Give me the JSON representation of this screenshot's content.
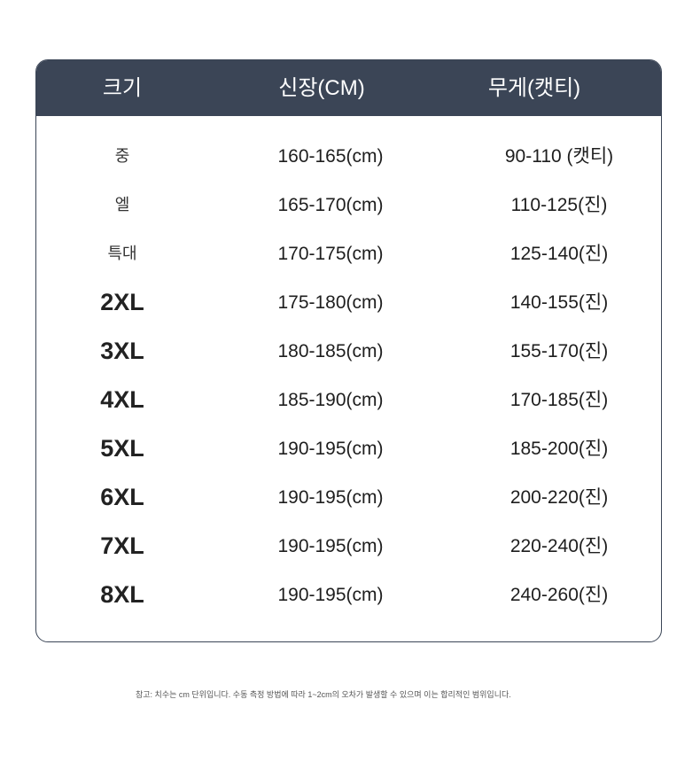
{
  "header": {
    "size": "크기",
    "height": "신장(CM)",
    "weight": "무게(캣티)"
  },
  "header_color": "#3b4556",
  "rows": [
    {
      "size": "중",
      "height": "160-165(cm)",
      "weight": "90-110 (캣티)"
    },
    {
      "size": "엘",
      "height": "165-170(cm)",
      "weight": "110-125(진)"
    },
    {
      "size": "특대",
      "height": "170-175(cm)",
      "weight": "125-140(진)"
    },
    {
      "size": "2XL",
      "height": "175-180(cm)",
      "weight": "140-155(진)"
    },
    {
      "size": "3XL",
      "height": "180-185(cm)",
      "weight": "155-170(진)"
    },
    {
      "size": "4XL",
      "height": "185-190(cm)",
      "weight": "170-185(진)"
    },
    {
      "size": "5XL",
      "height": "190-195(cm)",
      "weight": "185-200(진)"
    },
    {
      "size": "6XL",
      "height": "190-195(cm)",
      "weight": "200-220(진)"
    },
    {
      "size": "7XL",
      "height": "190-195(cm)",
      "weight": "220-240(진)"
    },
    {
      "size": "8XL",
      "height": "190-195(cm)",
      "weight": "240-260(진)"
    }
  ],
  "note": "참고: 치수는 cm 단위입니다. 수동 측정 방법에 따라 1~2cm의 오차가 발생할 수 있으며 이는 합리적인 범위입니다."
}
